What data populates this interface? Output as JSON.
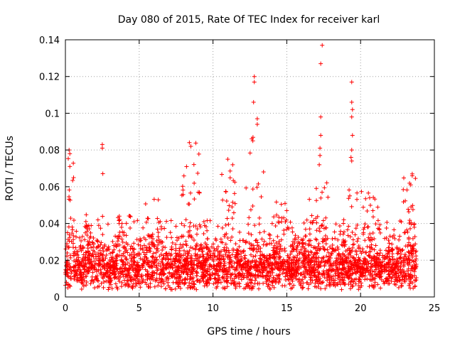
{
  "chart_data": {
    "type": "scatter",
    "title": "Day 080 of 2015, Rate Of TEC Index for receiver karl",
    "xlabel": "GPS time / hours",
    "ylabel": "ROTI / TECUs",
    "xlim": [
      0,
      25
    ],
    "ylim": [
      0,
      0.14
    ],
    "xticks": [
      0,
      5,
      10,
      15,
      20,
      25
    ],
    "xtick_labels": [
      "0",
      "5",
      "10",
      "15",
      "20",
      "25"
    ],
    "yticks": [
      0,
      0.02,
      0.04,
      0.06,
      0.08,
      0.1,
      0.12,
      0.14
    ],
    "ytick_labels": [
      "0",
      "0.02",
      "0.04",
      "0.06",
      "0.08",
      "0.1",
      "0.12",
      "0.14"
    ],
    "grid": true,
    "marker": "+",
    "color": "#ff0000",
    "generation": {
      "x_range": [
        0,
        23.8
      ],
      "n_points": 3200,
      "typical_mean": 0.016,
      "typical_spread": 0.006
    },
    "enhanced_segments": [
      {
        "x": [
          0.0,
          0.6
        ],
        "max": 0.08
      },
      {
        "x": [
          1.2,
          2.2
        ],
        "max": 0.05
      },
      {
        "x": [
          2.3,
          2.7
        ],
        "max": 0.083
      },
      {
        "x": [
          3.5,
          4.5
        ],
        "max": 0.045
      },
      {
        "x": [
          5.0,
          6.5
        ],
        "max": 0.056
      },
      {
        "x": [
          7.8,
          9.2
        ],
        "max": 0.084
      },
      {
        "x": [
          10.5,
          11.5
        ],
        "max": 0.075
      },
      {
        "x": [
          12.2,
          13.5
        ],
        "max": 0.087
      },
      {
        "x": [
          14.0,
          15.0
        ],
        "max": 0.06
      },
      {
        "x": [
          16.0,
          17.8
        ],
        "max": 0.064
      },
      {
        "x": [
          18.8,
          19.8
        ],
        "max": 0.06
      },
      {
        "x": [
          20.0,
          21.2
        ],
        "max": 0.06
      },
      {
        "x": [
          22.8,
          23.8
        ],
        "max": 0.067
      }
    ],
    "outliers": [
      {
        "x": 12.8,
        "y": 0.12
      },
      {
        "x": 12.8,
        "y": 0.117
      },
      {
        "x": 12.75,
        "y": 0.106
      },
      {
        "x": 13.0,
        "y": 0.097
      },
      {
        "x": 13.0,
        "y": 0.094
      },
      {
        "x": 12.7,
        "y": 0.085
      },
      {
        "x": 17.4,
        "y": 0.137
      },
      {
        "x": 17.3,
        "y": 0.127
      },
      {
        "x": 17.3,
        "y": 0.098
      },
      {
        "x": 17.3,
        "y": 0.088
      },
      {
        "x": 17.25,
        "y": 0.081
      },
      {
        "x": 17.25,
        "y": 0.077
      },
      {
        "x": 17.2,
        "y": 0.072
      },
      {
        "x": 19.4,
        "y": 0.117
      },
      {
        "x": 19.4,
        "y": 0.106
      },
      {
        "x": 19.45,
        "y": 0.102
      },
      {
        "x": 19.4,
        "y": 0.098
      },
      {
        "x": 19.45,
        "y": 0.088
      },
      {
        "x": 19.4,
        "y": 0.08
      },
      {
        "x": 19.35,
        "y": 0.076
      },
      {
        "x": 19.4,
        "y": 0.074
      },
      {
        "x": 2.5,
        "y": 0.083
      },
      {
        "x": 2.5,
        "y": 0.081
      },
      {
        "x": 8.4,
        "y": 0.084
      },
      {
        "x": 8.5,
        "y": 0.082
      },
      {
        "x": 0.25,
        "y": 0.08
      },
      {
        "x": 0.3,
        "y": 0.078
      },
      {
        "x": 0.3,
        "y": 0.071
      },
      {
        "x": 11.0,
        "y": 0.075
      },
      {
        "x": 23.5,
        "y": 0.067
      },
      {
        "x": 23.5,
        "y": 0.066
      },
      {
        "x": 23.4,
        "y": 0.061
      }
    ]
  }
}
